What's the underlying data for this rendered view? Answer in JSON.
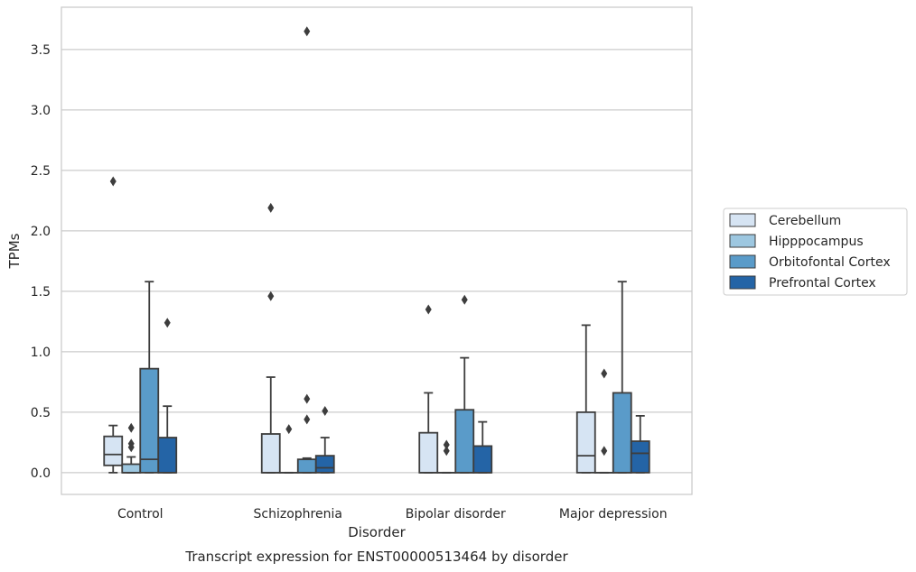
{
  "chart_data": {
    "type": "box",
    "caption": "Transcript expression for ENST00000513464 by disorder",
    "xlabel": "Disorder",
    "ylabel": "TPMs",
    "ylim": [
      -0.18,
      3.85
    ],
    "yticks": [
      "0.0",
      "0.5",
      "1.0",
      "1.5",
      "2.0",
      "2.5",
      "3.0",
      "3.5"
    ],
    "grid": "horizontal",
    "legend_position": "right",
    "categories": [
      "Control",
      "Schizophrenia",
      "Bipolar disorder",
      "Major depression"
    ],
    "series": [
      {
        "name": "Cerebellum",
        "color": "#d6e4f3",
        "boxes": [
          {
            "whislo": 0.0,
            "q1": 0.06,
            "med": 0.15,
            "q3": 0.3,
            "whishi": 0.39,
            "fliers": [
              2.41
            ]
          },
          {
            "whislo": 0.0,
            "q1": 0.0,
            "med": 0.0,
            "q3": 0.32,
            "whishi": 0.79,
            "fliers": [
              1.46,
              2.19
            ]
          },
          {
            "whislo": 0.0,
            "q1": 0.0,
            "med": 0.0,
            "q3": 0.33,
            "whishi": 0.66,
            "fliers": [
              1.35
            ]
          },
          {
            "whislo": 0.0,
            "q1": 0.0,
            "med": 0.14,
            "q3": 0.5,
            "whishi": 1.22,
            "fliers": []
          }
        ]
      },
      {
        "name": "Hipppocampus",
        "color": "#9dc7e0",
        "boxes": [
          {
            "whislo": 0.0,
            "q1": 0.0,
            "med": 0.0,
            "q3": 0.07,
            "whishi": 0.13,
            "fliers": [
              0.21,
              0.24,
              0.37
            ]
          },
          {
            "whislo": 0.0,
            "q1": 0.0,
            "med": 0.0,
            "q3": 0.0,
            "whishi": 0.0,
            "fliers": [
              0.36
            ]
          },
          {
            "whislo": 0.0,
            "q1": 0.0,
            "med": 0.0,
            "q3": 0.0,
            "whishi": 0.0,
            "fliers": [
              0.18,
              0.23
            ]
          },
          {
            "whislo": 0.0,
            "q1": 0.0,
            "med": 0.0,
            "q3": 0.0,
            "whishi": 0.0,
            "fliers": [
              0.18,
              0.82
            ]
          }
        ]
      },
      {
        "name": "Orbitofontal Cortex",
        "color": "#5a9bc9",
        "boxes": [
          {
            "whislo": 0.0,
            "q1": 0.0,
            "med": 0.11,
            "q3": 0.86,
            "whishi": 1.58,
            "fliers": []
          },
          {
            "whislo": 0.0,
            "q1": 0.0,
            "med": 0.0,
            "q3": 0.11,
            "whishi": 0.12,
            "fliers": [
              0.44,
              0.61,
              3.65
            ]
          },
          {
            "whislo": 0.0,
            "q1": 0.0,
            "med": 0.0,
            "q3": 0.52,
            "whishi": 0.95,
            "fliers": [
              1.43
            ]
          },
          {
            "whislo": 0.0,
            "q1": 0.0,
            "med": 0.0,
            "q3": 0.66,
            "whishi": 1.58,
            "fliers": []
          }
        ]
      },
      {
        "name": "Prefrontal Cortex",
        "color": "#2464a6",
        "boxes": [
          {
            "whislo": 0.0,
            "q1": 0.0,
            "med": 0.0,
            "q3": 0.29,
            "whishi": 0.55,
            "fliers": [
              1.24
            ]
          },
          {
            "whislo": 0.0,
            "q1": 0.0,
            "med": 0.04,
            "q3": 0.14,
            "whishi": 0.29,
            "fliers": [
              0.51
            ]
          },
          {
            "whislo": 0.0,
            "q1": 0.0,
            "med": 0.0,
            "q3": 0.22,
            "whishi": 0.42,
            "fliers": []
          },
          {
            "whislo": 0.0,
            "q1": 0.0,
            "med": 0.16,
            "q3": 0.26,
            "whishi": 0.47,
            "fliers": []
          }
        ]
      }
    ]
  }
}
